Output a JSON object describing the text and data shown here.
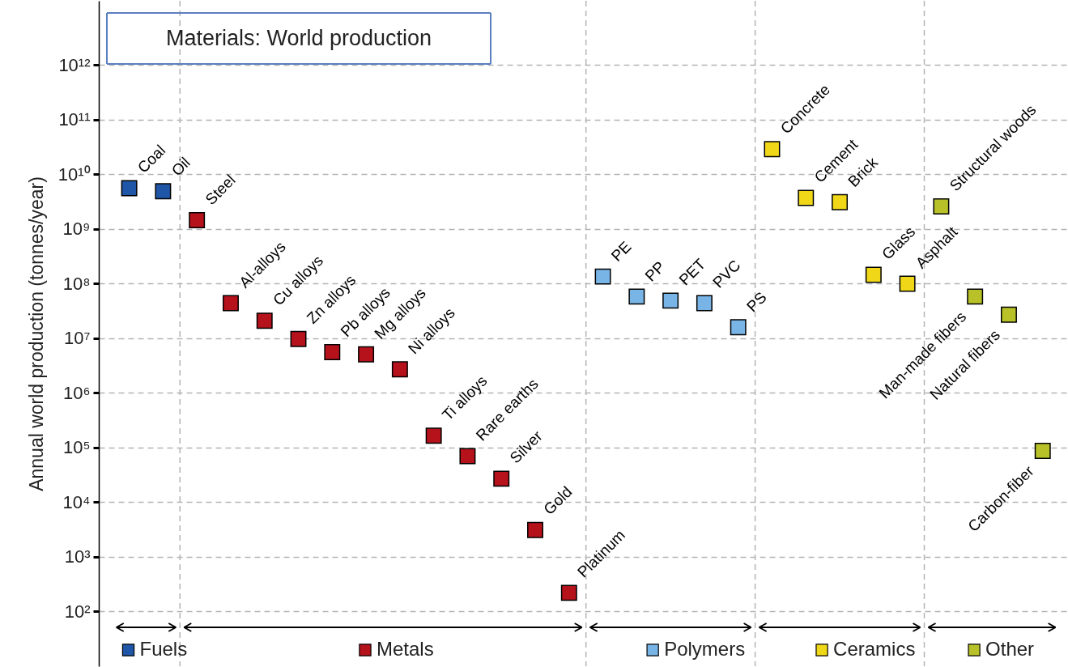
{
  "chart_data": {
    "type": "scatter",
    "title": "Materials: World production",
    "ylabel": "Annual world production (tonnes/year)",
    "categories": [
      null,
      null,
      null,
      null,
      null,
      null,
      null,
      null,
      null,
      null,
      null,
      null,
      null,
      null,
      null,
      null,
      null,
      null,
      null,
      null,
      null,
      null,
      null,
      null,
      null,
      null,
      null,
      null
    ],
    "series": [
      {
        "name": "Fuels",
        "color": "#1f56a8",
        "values": [
          5600000000.0,
          4900000000.0,
          null,
          null,
          null,
          null,
          null,
          null,
          null,
          null,
          null,
          null,
          null,
          null,
          null,
          null,
          null,
          null,
          null,
          null,
          null,
          null,
          null,
          null,
          null,
          null,
          null,
          null
        ],
        "value_labels": [
          "Coal",
          "Oil",
          null,
          null,
          null,
          null,
          null,
          null,
          null,
          null,
          null,
          null,
          null,
          null,
          null,
          null,
          null,
          null,
          null,
          null,
          null,
          null,
          null,
          null,
          null,
          null,
          null,
          null
        ]
      },
      {
        "name": "Metals",
        "color": "#b5121b",
        "values": [
          null,
          null,
          1450000000.0,
          44000000.0,
          21000000.0,
          9700000.0,
          5600000.0,
          5100000.0,
          2700000.0,
          165000.0,
          70000.0,
          27000.0,
          3100.0,
          220,
          null,
          null,
          null,
          null,
          null,
          null,
          null,
          null,
          null,
          null,
          null,
          null,
          null,
          null
        ],
        "value_labels": [
          null,
          null,
          "Steel",
          "Al-alloys",
          "Cu alloys",
          "Zn alloys",
          "Pb alloys",
          "Mg alloys",
          "Ni alloys",
          "Ti alloys",
          "Rare earths",
          "Silver",
          "Gold",
          "Platinum",
          null,
          null,
          null,
          null,
          null,
          null,
          null,
          null,
          null,
          null,
          null,
          null,
          null,
          null
        ]
      },
      {
        "name": "Polymers",
        "color": "#79b4e6",
        "values": [
          null,
          null,
          null,
          null,
          null,
          null,
          null,
          null,
          null,
          null,
          null,
          null,
          null,
          null,
          135000000.0,
          58000000.0,
          49000000.0,
          44000000.0,
          16000000.0,
          null,
          null,
          null,
          null,
          null,
          null,
          null,
          null,
          null
        ],
        "value_labels": [
          null,
          null,
          null,
          null,
          null,
          null,
          null,
          null,
          null,
          null,
          null,
          null,
          null,
          null,
          "PE",
          "PP",
          "PET",
          "PVC",
          "PS",
          null,
          null,
          null,
          null,
          null,
          null,
          null,
          null,
          null
        ]
      },
      {
        "name": "Ceramics",
        "color": "#f0d818",
        "values": [
          null,
          null,
          null,
          null,
          null,
          null,
          null,
          null,
          null,
          null,
          null,
          null,
          null,
          null,
          null,
          null,
          null,
          null,
          null,
          29000000000.0,
          3700000000.0,
          3100000000.0,
          145000000.0,
          100000000.0,
          null,
          null,
          null,
          null
        ],
        "value_labels": [
          null,
          null,
          null,
          null,
          null,
          null,
          null,
          null,
          null,
          null,
          null,
          null,
          null,
          null,
          null,
          null,
          null,
          null,
          null,
          "Concrete",
          "Cement",
          "Brick",
          "Glass",
          "Asphalt",
          null,
          null,
          null,
          null
        ]
      },
      {
        "name": "Other",
        "color": "#b8c228",
        "values": [
          null,
          null,
          null,
          null,
          null,
          null,
          null,
          null,
          null,
          null,
          null,
          null,
          null,
          null,
          null,
          null,
          null,
          null,
          null,
          null,
          null,
          null,
          null,
          null,
          2600000000.0,
          58000000.0,
          27000000.0,
          87000.0
        ],
        "value_labels": [
          null,
          null,
          null,
          null,
          null,
          null,
          null,
          null,
          null,
          null,
          null,
          null,
          null,
          null,
          null,
          null,
          null,
          null,
          null,
          null,
          null,
          null,
          null,
          null,
          "Structural woods",
          "Man-made fibers",
          "Natural fibers",
          "Carbon-fiber"
        ]
      }
    ],
    "log": true,
    "ylim": [
      10,
      15000000000000.0
    ],
    "yticks": [
      {
        "value": 100,
        "label": "10²"
      },
      {
        "value": 1000,
        "label": "10³"
      },
      {
        "value": 10000,
        "label": "10⁴"
      },
      {
        "value": 100000,
        "label": "10⁵"
      },
      {
        "value": 1000000,
        "label": "10⁶"
      },
      {
        "value": 10000000,
        "label": "10⁷"
      },
      {
        "value": 100000000,
        "label": "10⁸"
      },
      {
        "value": 1000000000,
        "label": "10⁹"
      },
      {
        "value": 10000000000,
        "label": "10¹⁰"
      },
      {
        "value": 100000000000,
        "label": "10¹¹"
      },
      {
        "value": 1000000000000,
        "label": "10¹²"
      }
    ],
    "grid": true,
    "marker": "square",
    "legend": "bottom"
  }
}
